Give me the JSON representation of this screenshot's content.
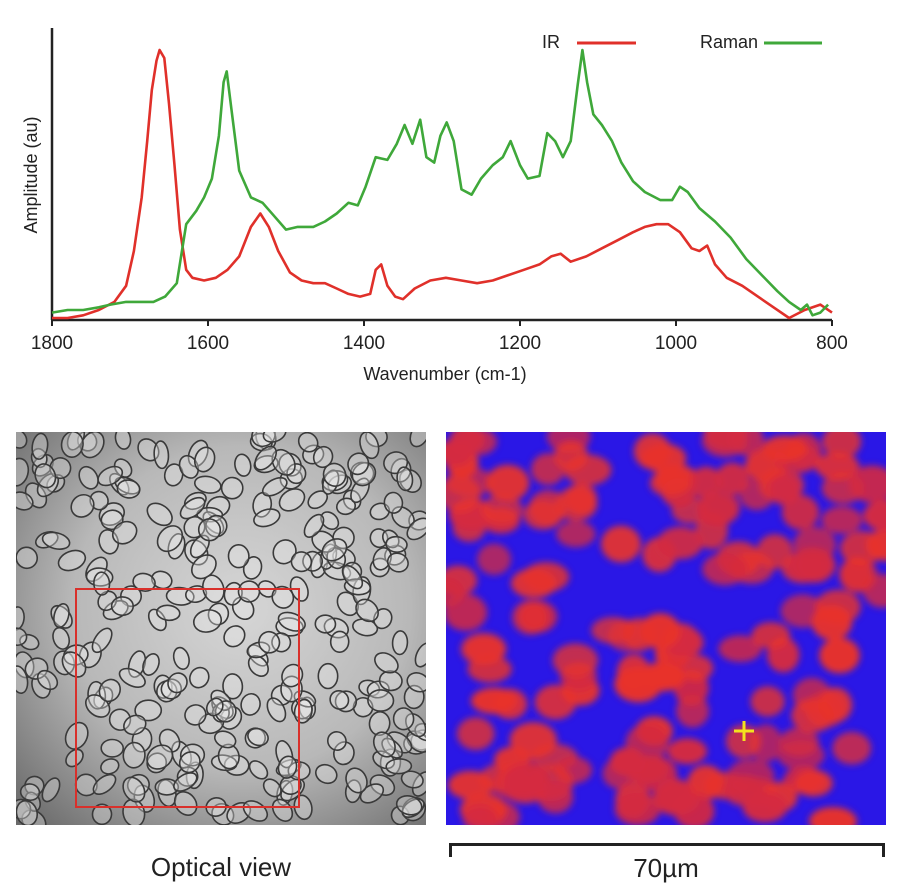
{
  "chart_data": {
    "type": "line",
    "xlabel": "Wavenumber (cm-1)",
    "ylabel": "Amplitude (au)",
    "xlim": [
      1800,
      800
    ],
    "x_reversed": true,
    "ylim": [
      0,
      1.0
    ],
    "grid": false,
    "legend_placement": "top-right",
    "xticks": [
      "1800",
      "1600",
      "1400",
      "1200",
      "1000",
      "800"
    ],
    "series": [
      {
        "name": "IR",
        "color": "#e0302a",
        "points": [
          [
            1800,
            0.0
          ],
          [
            1780,
            0.0
          ],
          [
            1760,
            0.01
          ],
          [
            1740,
            0.03
          ],
          [
            1720,
            0.06
          ],
          [
            1705,
            0.12
          ],
          [
            1695,
            0.25
          ],
          [
            1685,
            0.45
          ],
          [
            1678,
            0.66
          ],
          [
            1672,
            0.85
          ],
          [
            1666,
            0.96
          ],
          [
            1662,
            1.0
          ],
          [
            1656,
            0.97
          ],
          [
            1650,
            0.8
          ],
          [
            1643,
            0.57
          ],
          [
            1636,
            0.33
          ],
          [
            1628,
            0.18
          ],
          [
            1620,
            0.15
          ],
          [
            1605,
            0.14
          ],
          [
            1590,
            0.15
          ],
          [
            1575,
            0.18
          ],
          [
            1560,
            0.23
          ],
          [
            1545,
            0.34
          ],
          [
            1533,
            0.39
          ],
          [
            1522,
            0.34
          ],
          [
            1510,
            0.25
          ],
          [
            1495,
            0.17
          ],
          [
            1480,
            0.14
          ],
          [
            1465,
            0.13
          ],
          [
            1450,
            0.13
          ],
          [
            1435,
            0.11
          ],
          [
            1420,
            0.09
          ],
          [
            1405,
            0.08
          ],
          [
            1392,
            0.09
          ],
          [
            1385,
            0.18
          ],
          [
            1378,
            0.2
          ],
          [
            1370,
            0.12
          ],
          [
            1360,
            0.08
          ],
          [
            1350,
            0.07
          ],
          [
            1335,
            0.11
          ],
          [
            1315,
            0.14
          ],
          [
            1295,
            0.15
          ],
          [
            1275,
            0.14
          ],
          [
            1255,
            0.13
          ],
          [
            1235,
            0.14
          ],
          [
            1215,
            0.16
          ],
          [
            1195,
            0.18
          ],
          [
            1175,
            0.2
          ],
          [
            1160,
            0.23
          ],
          [
            1148,
            0.24
          ],
          [
            1135,
            0.21
          ],
          [
            1115,
            0.23
          ],
          [
            1095,
            0.26
          ],
          [
            1075,
            0.29
          ],
          [
            1055,
            0.32
          ],
          [
            1040,
            0.34
          ],
          [
            1025,
            0.35
          ],
          [
            1010,
            0.35
          ],
          [
            995,
            0.32
          ],
          [
            980,
            0.26
          ],
          [
            970,
            0.25
          ],
          [
            960,
            0.27
          ],
          [
            950,
            0.2
          ],
          [
            935,
            0.15
          ],
          [
            915,
            0.12
          ],
          [
            895,
            0.08
          ],
          [
            875,
            0.04
          ],
          [
            855,
            0.0
          ],
          [
            835,
            0.03
          ],
          [
            815,
            0.05
          ],
          [
            800,
            0.02
          ]
        ]
      },
      {
        "name": "Raman",
        "color": "#3fa83a",
        "points": [
          [
            1800,
            0.02
          ],
          [
            1780,
            0.03
          ],
          [
            1760,
            0.03
          ],
          [
            1740,
            0.04
          ],
          [
            1725,
            0.05
          ],
          [
            1705,
            0.06
          ],
          [
            1690,
            0.06
          ],
          [
            1670,
            0.06
          ],
          [
            1655,
            0.08
          ],
          [
            1640,
            0.13
          ],
          [
            1628,
            0.35
          ],
          [
            1615,
            0.4
          ],
          [
            1605,
            0.45
          ],
          [
            1595,
            0.52
          ],
          [
            1586,
            0.68
          ],
          [
            1580,
            0.88
          ],
          [
            1576,
            0.92
          ],
          [
            1570,
            0.78
          ],
          [
            1560,
            0.55
          ],
          [
            1545,
            0.45
          ],
          [
            1530,
            0.43
          ],
          [
            1515,
            0.38
          ],
          [
            1500,
            0.33
          ],
          [
            1485,
            0.34
          ],
          [
            1465,
            0.34
          ],
          [
            1450,
            0.36
          ],
          [
            1435,
            0.39
          ],
          [
            1420,
            0.43
          ],
          [
            1408,
            0.42
          ],
          [
            1398,
            0.49
          ],
          [
            1385,
            0.6
          ],
          [
            1370,
            0.59
          ],
          [
            1358,
            0.65
          ],
          [
            1348,
            0.72
          ],
          [
            1338,
            0.65
          ],
          [
            1328,
            0.74
          ],
          [
            1320,
            0.6
          ],
          [
            1310,
            0.58
          ],
          [
            1302,
            0.68
          ],
          [
            1294,
            0.73
          ],
          [
            1285,
            0.66
          ],
          [
            1275,
            0.48
          ],
          [
            1262,
            0.46
          ],
          [
            1250,
            0.52
          ],
          [
            1235,
            0.57
          ],
          [
            1222,
            0.6
          ],
          [
            1212,
            0.66
          ],
          [
            1200,
            0.57
          ],
          [
            1190,
            0.52
          ],
          [
            1175,
            0.53
          ],
          [
            1165,
            0.69
          ],
          [
            1155,
            0.66
          ],
          [
            1145,
            0.6
          ],
          [
            1135,
            0.66
          ],
          [
            1126,
            0.87
          ],
          [
            1120,
            1.0
          ],
          [
            1114,
            0.88
          ],
          [
            1106,
            0.76
          ],
          [
            1095,
            0.72
          ],
          [
            1082,
            0.66
          ],
          [
            1070,
            0.58
          ],
          [
            1055,
            0.51
          ],
          [
            1040,
            0.47
          ],
          [
            1020,
            0.44
          ],
          [
            1005,
            0.44
          ],
          [
            995,
            0.49
          ],
          [
            985,
            0.47
          ],
          [
            970,
            0.41
          ],
          [
            950,
            0.36
          ],
          [
            930,
            0.3
          ],
          [
            910,
            0.22
          ],
          [
            890,
            0.16
          ],
          [
            870,
            0.1
          ],
          [
            855,
            0.06
          ],
          [
            840,
            0.03
          ],
          [
            832,
            0.05
          ],
          [
            825,
            0.01
          ],
          [
            815,
            0.02
          ],
          [
            805,
            0.05
          ]
        ]
      }
    ]
  },
  "images": {
    "optical_caption": "Optical view",
    "scalebar_label": "70µm"
  },
  "colors": {
    "ir": "#e0302a",
    "raman": "#3fa83a",
    "map_background": "#2a17e6",
    "map_cells": "#e8332c",
    "crosshair": "#f3e21e",
    "roi_box": "#d9302b"
  }
}
